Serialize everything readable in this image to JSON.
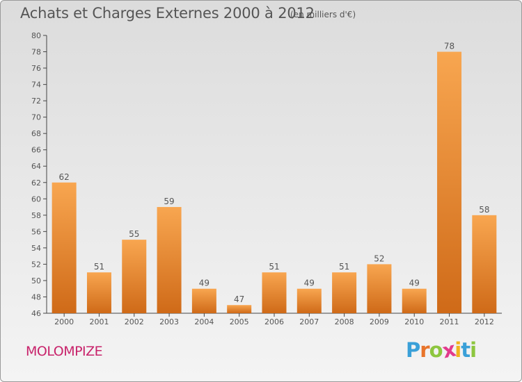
{
  "header": {
    "title": "Achats et Charges Externes 2000 à 2012",
    "subtitle": "(en milliers d'€)"
  },
  "footer": {
    "commune": "MOLOMPIZE",
    "logo_letters": [
      "P",
      "r",
      "o",
      "x",
      "i",
      "t",
      "i"
    ],
    "logo_colors": [
      "#3aa0d8",
      "#e8742a",
      "#8dc63f",
      "#e23a8c",
      "#f2b21c",
      "#3aa0d8",
      "#8dc63f"
    ]
  },
  "colors": {
    "bar_top": "#f8a650",
    "bar_bottom": "#cf6a18",
    "text": "#555555"
  },
  "chart_data": {
    "type": "bar",
    "categories": [
      "2000",
      "2001",
      "2002",
      "2003",
      "2004",
      "2005",
      "2006",
      "2007",
      "2008",
      "2009",
      "2010",
      "2011",
      "2012"
    ],
    "values": [
      62,
      51,
      55,
      59,
      49,
      47,
      51,
      49,
      51,
      52,
      49,
      78,
      58
    ],
    "ylim": [
      46,
      80
    ],
    "yticks": [
      46,
      48,
      50,
      52,
      54,
      56,
      58,
      60,
      62,
      64,
      66,
      68,
      70,
      72,
      74,
      76,
      78,
      80
    ],
    "grid": false,
    "data_labels": true
  }
}
